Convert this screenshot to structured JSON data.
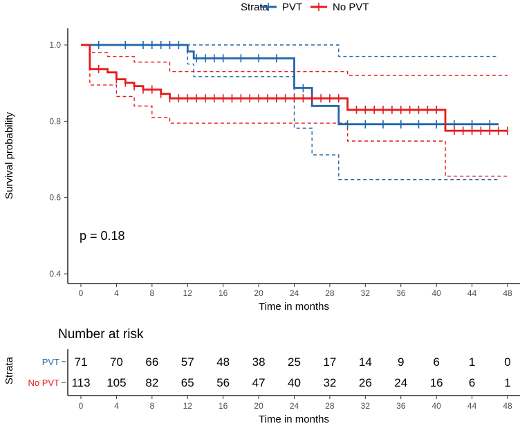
{
  "legend": {
    "title": "Strata",
    "labels": [
      "PVT",
      "No PVT"
    ],
    "placement": "top"
  },
  "colors": {
    "PVT": "#2166ac",
    "No PVT": "#e41a1c",
    "axis": "#000000",
    "tick": "#4d4d4d"
  },
  "p_value_text": "p = 0.18",
  "risk_table": {
    "title": "Number at risk",
    "strata_label": "Strata",
    "xlabel": "Time in months",
    "times": [
      0,
      4,
      8,
      12,
      16,
      20,
      24,
      28,
      32,
      36,
      40,
      44,
      48
    ],
    "rows": [
      {
        "name": "PVT",
        "counts": [
          "71",
          "70",
          "66",
          "57",
          "48",
          "38",
          "25",
          "17",
          "14",
          "9",
          "6",
          "1",
          "0"
        ]
      },
      {
        "name": "No PVT",
        "counts": [
          "113",
          "105",
          "82",
          "65",
          "56",
          "47",
          "40",
          "32",
          "26",
          "24",
          "16",
          "6",
          "1"
        ]
      }
    ]
  },
  "chart_data": {
    "type": "line",
    "title": "",
    "xlabel": "Time in months",
    "ylabel": "Survival probability",
    "xlim": [
      0,
      48
    ],
    "ylim": [
      0.4,
      1.0
    ],
    "xticks": [
      "0",
      "4",
      "8",
      "12",
      "16",
      "20",
      "24",
      "28",
      "32",
      "36",
      "40",
      "44",
      "48"
    ],
    "xtick_values": [
      0,
      4,
      8,
      12,
      16,
      20,
      24,
      28,
      32,
      36,
      40,
      44,
      48
    ],
    "yticks": [
      "0.4",
      "0.6",
      "0.8",
      "1.0"
    ],
    "ytick_values": [
      0.4,
      0.6,
      0.8,
      1.0
    ],
    "series": [
      {
        "name": "PVT",
        "steps": [
          [
            0,
            1.0
          ],
          [
            12,
            0.983
          ],
          [
            12.7,
            0.965
          ],
          [
            24,
            0.887
          ],
          [
            26,
            0.84
          ],
          [
            29,
            0.792
          ],
          [
            47,
            0.792
          ]
        ],
        "upper": [
          [
            0,
            1.0
          ],
          [
            12,
            1.0
          ],
          [
            24,
            1.0
          ],
          [
            29,
            0.97
          ],
          [
            47,
            0.97
          ]
        ],
        "lower": [
          [
            0,
            1.0
          ],
          [
            12,
            0.95
          ],
          [
            12.7,
            0.917
          ],
          [
            24,
            0.782
          ],
          [
            26,
            0.712
          ],
          [
            29,
            0.647
          ],
          [
            47,
            0.647
          ]
        ],
        "censor_times": [
          2,
          5,
          7,
          8,
          9,
          10,
          11,
          13,
          14,
          15,
          16,
          18,
          20,
          22,
          25,
          30,
          32,
          34,
          36,
          38,
          40,
          42,
          44,
          46
        ]
      },
      {
        "name": "No PVT",
        "steps": [
          [
            0,
            1.0
          ],
          [
            1,
            0.937
          ],
          [
            3,
            0.928
          ],
          [
            4,
            0.91
          ],
          [
            5,
            0.901
          ],
          [
            6,
            0.892
          ],
          [
            7,
            0.883
          ],
          [
            9,
            0.872
          ],
          [
            10,
            0.86
          ],
          [
            30,
            0.83
          ],
          [
            41,
            0.775
          ],
          [
            48,
            0.775
          ]
        ],
        "upper": [
          [
            0,
            1.0
          ],
          [
            1,
            0.98
          ],
          [
            3,
            0.97
          ],
          [
            6,
            0.955
          ],
          [
            10,
            0.93
          ],
          [
            30,
            0.92
          ],
          [
            41,
            0.92
          ],
          [
            48,
            0.92
          ]
        ],
        "lower": [
          [
            0,
            1.0
          ],
          [
            1,
            0.895
          ],
          [
            4,
            0.865
          ],
          [
            6,
            0.84
          ],
          [
            8,
            0.81
          ],
          [
            10,
            0.795
          ],
          [
            30,
            0.748
          ],
          [
            41,
            0.656
          ],
          [
            48,
            0.656
          ]
        ],
        "censor_times": [
          2,
          4,
          5,
          6,
          7,
          8,
          9,
          10,
          11,
          12,
          13,
          14,
          15,
          16,
          17,
          18,
          19,
          20,
          21,
          22,
          23,
          24,
          25,
          26,
          27,
          28,
          29,
          31,
          32,
          33,
          34,
          35,
          36,
          37,
          38,
          39,
          40,
          42,
          43,
          44,
          45,
          46,
          47,
          48
        ]
      }
    ]
  }
}
